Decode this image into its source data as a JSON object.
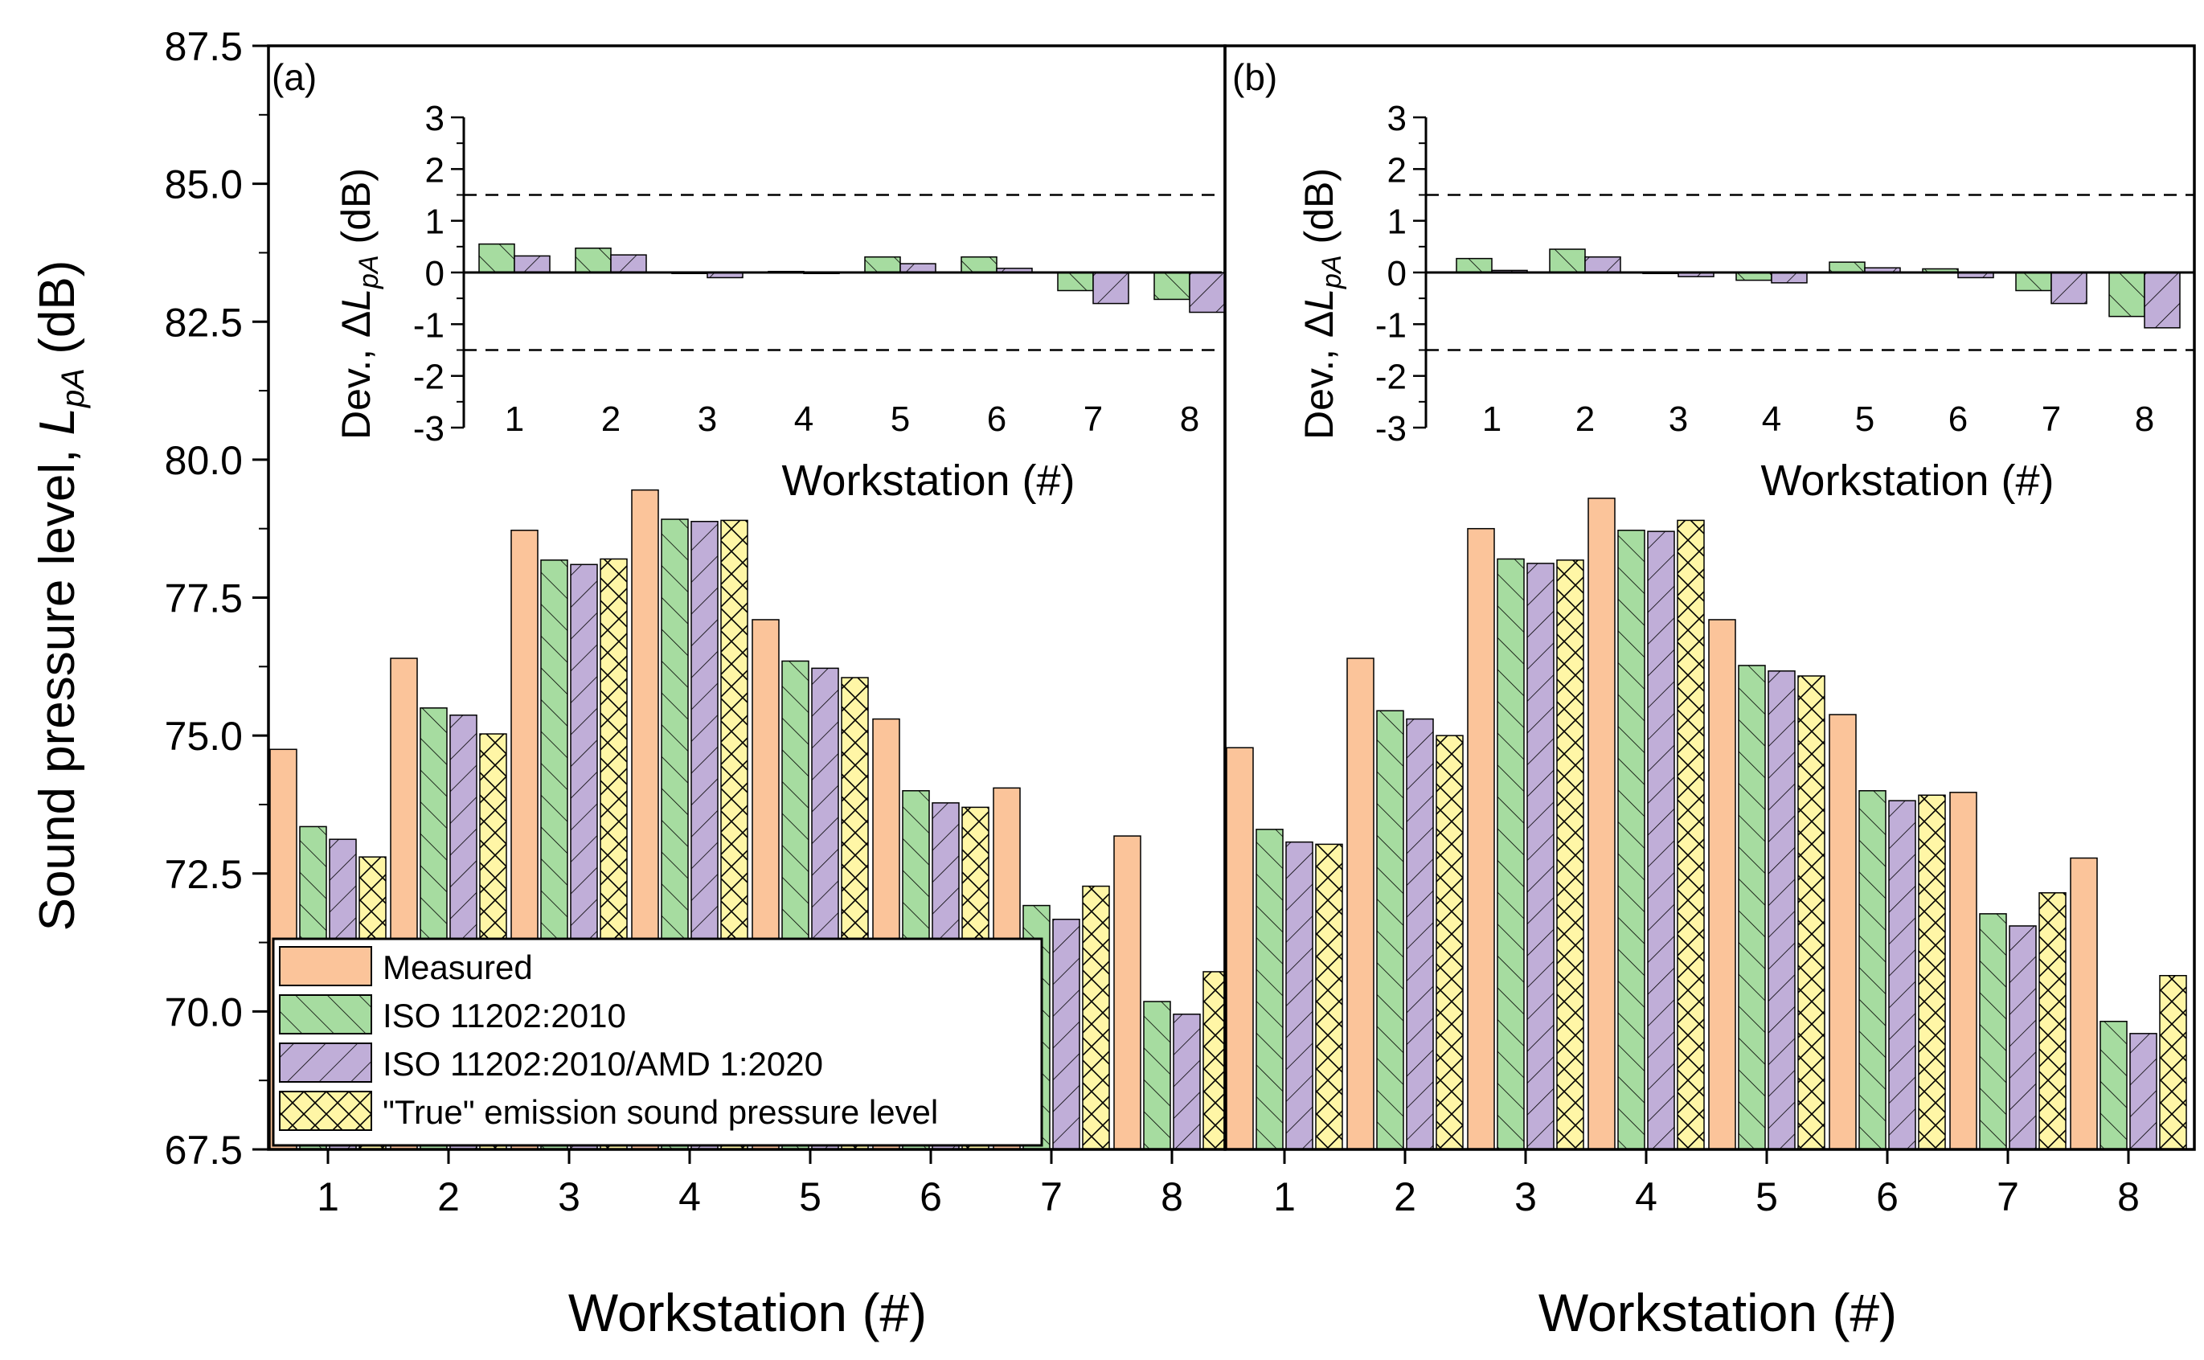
{
  "y_axis_title": "Sound pressure level, ",
  "y_axis_symbol": "L",
  "y_axis_sub": "pA",
  "y_axis_unit": " (dB)",
  "y_ticks": [
    "67.5",
    "70.0",
    "72.5",
    "75.0",
    "77.5",
    "80.0",
    "82.5",
    "85.0",
    "87.5"
  ],
  "legend": {
    "measured": "Measured",
    "iso2010": "ISO 11202:2010",
    "amd2020": "ISO 11202:2010/AMD 1:2020",
    "true_level": "\"True\" emission sound pressure level"
  },
  "colors": {
    "measured": "#FBC49A",
    "iso2010": "#A6DCA0",
    "amd2020": "#C0AED8",
    "true_level": "#FFF6A6"
  },
  "chart_data": [
    {
      "panel": "(a)",
      "type": "bar",
      "xlabel": "Workstation (#)",
      "ylabel": "Sound pressure level, LpA (dB)",
      "ylim": [
        67.5,
        87.5
      ],
      "categories": [
        "1",
        "2",
        "3",
        "4",
        "5",
        "6",
        "7",
        "8"
      ],
      "series": [
        {
          "name": "Measured",
          "values": [
            74.75,
            76.4,
            78.72,
            79.45,
            77.1,
            75.3,
            74.05,
            73.18
          ]
        },
        {
          "name": "ISO 11202:2010",
          "values": [
            73.35,
            75.5,
            78.18,
            78.92,
            76.35,
            74.0,
            71.92,
            70.18
          ]
        },
        {
          "name": "ISO 11202:2010/AMD 1:2020",
          "values": [
            73.12,
            75.37,
            78.1,
            78.88,
            76.22,
            73.78,
            71.67,
            69.95
          ]
        },
        {
          "name": "\"True\" emission sound pressure level",
          "values": [
            72.8,
            75.03,
            78.2,
            78.9,
            76.05,
            73.7,
            72.27,
            70.72
          ]
        }
      ],
      "inset": {
        "type": "bar",
        "xlabel": "Workstation (#)",
        "ylabel": "Dev., ΔLpA (dB)",
        "ylim": [
          -3,
          3
        ],
        "yticks": [
          "-3",
          "-2",
          "-1",
          "0",
          "1",
          "2",
          "3"
        ],
        "reference_lines": [
          1.5,
          -1.5
        ],
        "categories": [
          "1",
          "2",
          "3",
          "4",
          "5",
          "6",
          "7",
          "8"
        ],
        "series": [
          {
            "name": "ISO 11202:2010",
            "values": [
              0.55,
              0.47,
              -0.02,
              0.02,
              0.3,
              0.3,
              -0.35,
              -0.52
            ]
          },
          {
            "name": "ISO 11202:2010/AMD 1:2020",
            "values": [
              0.32,
              0.34,
              -0.1,
              -0.02,
              0.17,
              0.08,
              -0.6,
              -0.77
            ]
          }
        ]
      }
    },
    {
      "panel": "(b)",
      "type": "bar",
      "xlabel": "Workstation (#)",
      "ylabel": "Sound pressure level, LpA (dB)",
      "ylim": [
        67.5,
        87.5
      ],
      "categories": [
        "1",
        "2",
        "3",
        "4",
        "5",
        "6",
        "7",
        "8"
      ],
      "series": [
        {
          "name": "Measured",
          "values": [
            74.78,
            76.4,
            78.75,
            79.3,
            77.1,
            75.38,
            73.97,
            72.78
          ]
        },
        {
          "name": "ISO 11202:2010",
          "values": [
            73.3,
            75.45,
            78.2,
            78.72,
            76.27,
            74.0,
            71.77,
            69.82
          ]
        },
        {
          "name": "ISO 11202:2010/AMD 1:2020",
          "values": [
            73.07,
            75.3,
            78.12,
            78.7,
            76.17,
            73.82,
            71.55,
            69.6
          ]
        },
        {
          "name": "\"True\" emission sound pressure level",
          "values": [
            73.03,
            75.0,
            78.18,
            78.9,
            76.08,
            73.92,
            72.15,
            70.65
          ]
        }
      ],
      "inset": {
        "type": "bar",
        "xlabel": "Workstation (#)",
        "ylabel": "Dev., ΔLpA (dB)",
        "ylim": [
          -3,
          3
        ],
        "yticks": [
          "-3",
          "-2",
          "-1",
          "0",
          "1",
          "2",
          "3"
        ],
        "reference_lines": [
          1.5,
          -1.5
        ],
        "categories": [
          "1",
          "2",
          "3",
          "4",
          "5",
          "6",
          "7",
          "8"
        ],
        "series": [
          {
            "name": "ISO 11202:2010",
            "values": [
              0.27,
              0.45,
              -0.02,
              -0.15,
              0.2,
              0.07,
              -0.35,
              -0.85
            ]
          },
          {
            "name": "ISO 11202:2010/AMD 1:2020",
            "values": [
              0.04,
              0.3,
              -0.08,
              -0.2,
              0.09,
              -0.1,
              -0.6,
              -1.07
            ]
          }
        ]
      }
    }
  ]
}
